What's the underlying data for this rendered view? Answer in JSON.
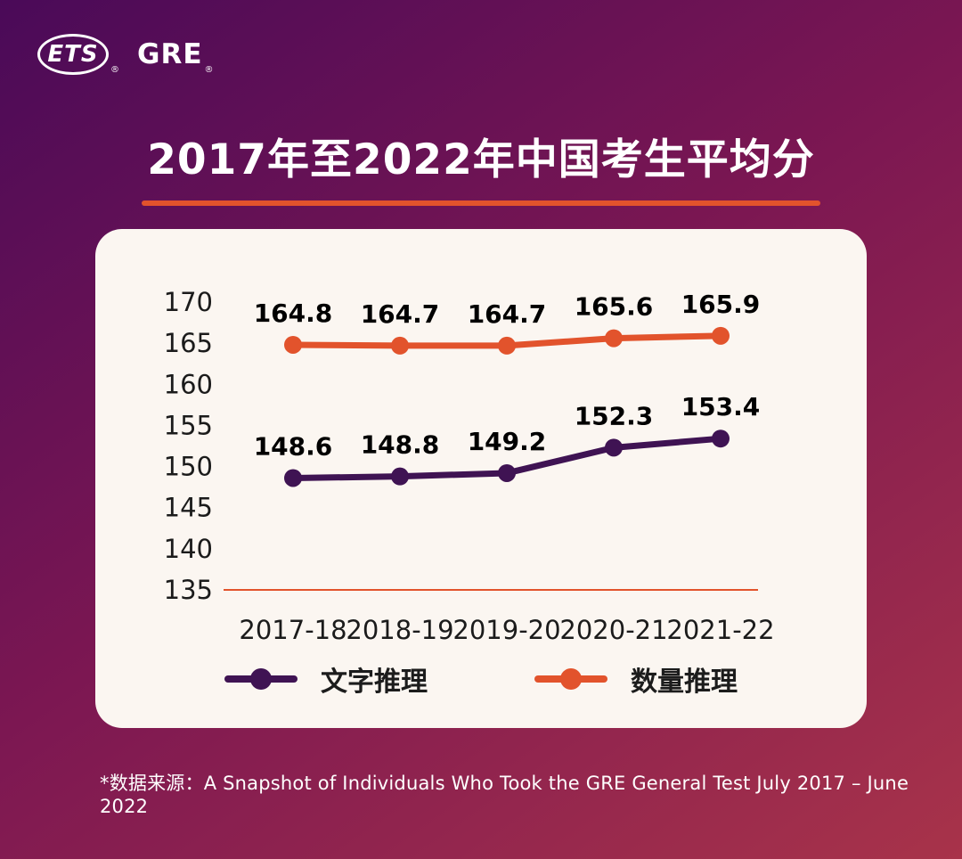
{
  "colors": {
    "bg1": "#4a0a58",
    "bg2": "#7c1752",
    "bg3": "#a8334a",
    "accent": "#e2532c",
    "card": "#fbf6f1"
  },
  "logo": {
    "ets": "ETS",
    "ets_reg": "®",
    "gre": "GRE",
    "gre_reg": "®"
  },
  "title": "2017年至2022年中国考生平均分",
  "footnote": "*数据来源：A Snapshot of Individuals Who Took the GRE General Test July 2017 – June 2022",
  "chart_data": {
    "type": "line",
    "title": "2017年至2022年中国考生平均分",
    "categories": [
      "2017-18",
      "2018-19",
      "2019-20",
      "2020-21",
      "2021-22"
    ],
    "series": [
      {
        "name": "文字推理",
        "color": "#3f1353",
        "values": [
          148.6,
          148.8,
          149.2,
          152.3,
          153.4
        ]
      },
      {
        "name": "数量推理",
        "color": "#e2532c",
        "values": [
          164.8,
          164.7,
          164.7,
          165.6,
          165.9
        ]
      }
    ],
    "ylim": [
      135,
      170
    ],
    "yticks": [
      170,
      165,
      160,
      155,
      150,
      145,
      140,
      135
    ],
    "grid": false,
    "data_labels": true,
    "legend_position": "bottom"
  }
}
